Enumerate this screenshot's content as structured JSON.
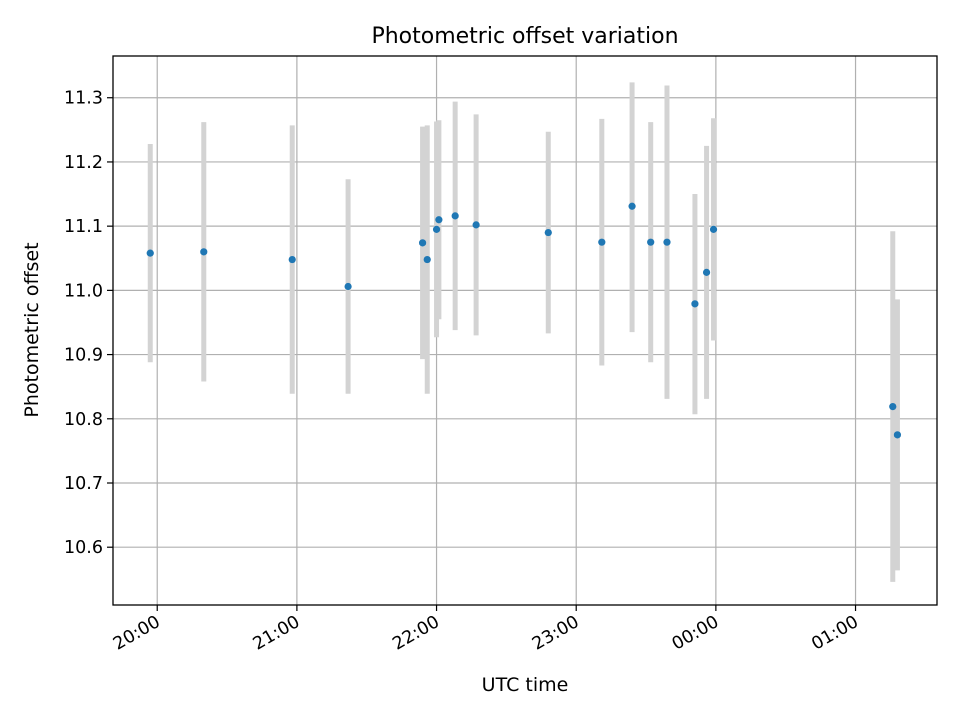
{
  "chart_data": {
    "type": "scatter",
    "title": "Photometric offset variation",
    "xlabel": "UTC time",
    "ylabel": "Photometric offset",
    "grid": true,
    "x_axis": {
      "kind": "time",
      "range": [
        "19:41",
        "01:35"
      ],
      "ticks": [
        "20:00",
        "21:00",
        "22:00",
        "23:00",
        "00:00",
        "01:00"
      ]
    },
    "y_axis": {
      "range": [
        10.51,
        11.365
      ],
      "ticks": [
        "10.6",
        "10.7",
        "10.8",
        "10.9",
        "11.0",
        "11.1",
        "11.2",
        "11.3"
      ]
    },
    "marker_color": "#1f77b4",
    "errorbar_color": "#d3d3d3",
    "points": [
      {
        "time": "19:57",
        "y": 11.058,
        "err_low": 10.888,
        "err_high": 11.228
      },
      {
        "time": "20:20",
        "y": 11.06,
        "err_low": 10.858,
        "err_high": 11.262
      },
      {
        "time": "20:58",
        "y": 11.048,
        "err_low": 10.839,
        "err_high": 11.257
      },
      {
        "time": "21:22",
        "y": 11.006,
        "err_low": 10.839,
        "err_high": 11.173
      },
      {
        "time": "21:54",
        "y": 11.074,
        "err_low": 10.893,
        "err_high": 11.255
      },
      {
        "time": "21:56",
        "y": 11.048,
        "err_low": 10.839,
        "err_high": 11.257
      },
      {
        "time": "22:00",
        "y": 11.095,
        "err_low": 10.927,
        "err_high": 11.263
      },
      {
        "time": "22:01",
        "y": 11.11,
        "err_low": 10.955,
        "err_high": 11.265
      },
      {
        "time": "22:08",
        "y": 11.116,
        "err_low": 10.938,
        "err_high": 11.294
      },
      {
        "time": "22:17",
        "y": 11.102,
        "err_low": 10.93,
        "err_high": 11.274
      },
      {
        "time": "22:48",
        "y": 11.09,
        "err_low": 10.933,
        "err_high": 11.247
      },
      {
        "time": "23:11",
        "y": 11.075,
        "err_low": 10.883,
        "err_high": 11.267
      },
      {
        "time": "23:24",
        "y": 11.131,
        "err_low": 10.935,
        "err_high": 11.324
      },
      {
        "time": "23:32",
        "y": 11.075,
        "err_low": 10.888,
        "err_high": 11.262
      },
      {
        "time": "23:39",
        "y": 11.075,
        "err_low": 10.831,
        "err_high": 11.319
      },
      {
        "time": "23:51",
        "y": 10.979,
        "err_low": 10.807,
        "err_high": 11.15
      },
      {
        "time": "23:56",
        "y": 11.028,
        "err_low": 10.831,
        "err_high": 11.225
      },
      {
        "time": "23:59",
        "y": 11.095,
        "err_low": 10.922,
        "err_high": 11.268
      },
      {
        "time": "01:16",
        "y": 10.819,
        "err_low": 10.546,
        "err_high": 11.092
      },
      {
        "time": "01:18",
        "y": 10.775,
        "err_low": 10.564,
        "err_high": 10.986
      }
    ]
  }
}
